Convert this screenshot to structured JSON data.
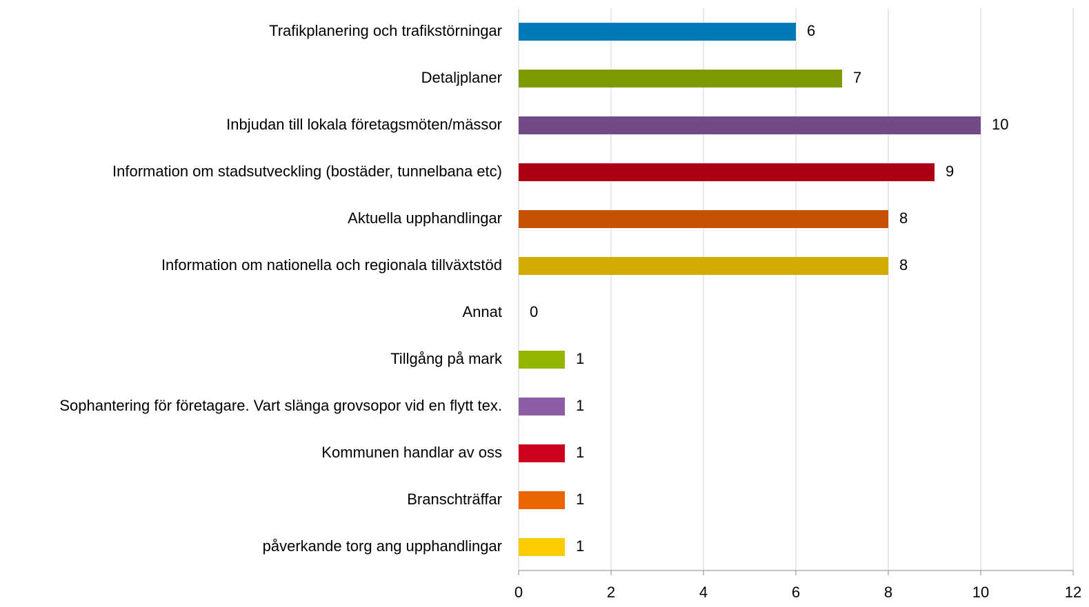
{
  "chart_data": {
    "type": "bar",
    "orientation": "horizontal",
    "categories": [
      "Trafikplanering och trafikstörningar",
      "Detaljplaner",
      "Inbjudan till lokala företagsmöten/mässor",
      "Information om stadsutveckling (bostäder, tunnelbana etc)",
      "Aktuella upphandlingar",
      "Information om nationella och regionala tillväxtstöd",
      "Annat",
      "Tillgång på mark",
      "Sophantering för företagare. Vart slänga grovsopor vid en flytt tex.",
      "Kommunen handlar av oss",
      "Branschträffar",
      "påverkande torg ang upphandlingar"
    ],
    "values": [
      6,
      7,
      10,
      9,
      8,
      8,
      0,
      1,
      1,
      1,
      1,
      1
    ],
    "colors": [
      "#0079b7",
      "#7f9a00",
      "#714a86",
      "#ac0015",
      "#c45200",
      "#d3aa00",
      "#a0a0a0",
      "#95b400",
      "#8c5ca5",
      "#cd0020",
      "#e86500",
      "#fccb00"
    ],
    "xlim": [
      0,
      12
    ],
    "xticks": [
      0,
      2,
      4,
      6,
      8,
      10,
      12
    ],
    "grid": true
  }
}
